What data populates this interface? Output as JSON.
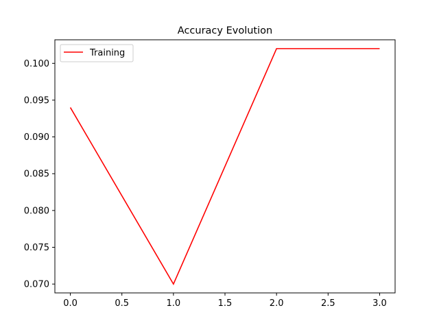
{
  "chart_data": {
    "type": "line",
    "title": "Accuracy Evolution",
    "xlabel": "",
    "ylabel": "",
    "xlim": [
      -0.15,
      3.15
    ],
    "ylim": [
      0.0688,
      0.1032
    ],
    "xticks": [
      "0.0",
      "0.5",
      "1.0",
      "1.5",
      "2.0",
      "2.5",
      "3.0"
    ],
    "yticks": [
      "0.070",
      "0.075",
      "0.080",
      "0.085",
      "0.090",
      "0.095",
      "0.100"
    ],
    "grid": false,
    "legend_position": "upper-left",
    "series": [
      {
        "name": "Training",
        "color": "#ff0000",
        "x": [
          0,
          1,
          2,
          3
        ],
        "y": [
          0.094,
          0.07,
          0.102,
          0.102
        ]
      }
    ]
  }
}
